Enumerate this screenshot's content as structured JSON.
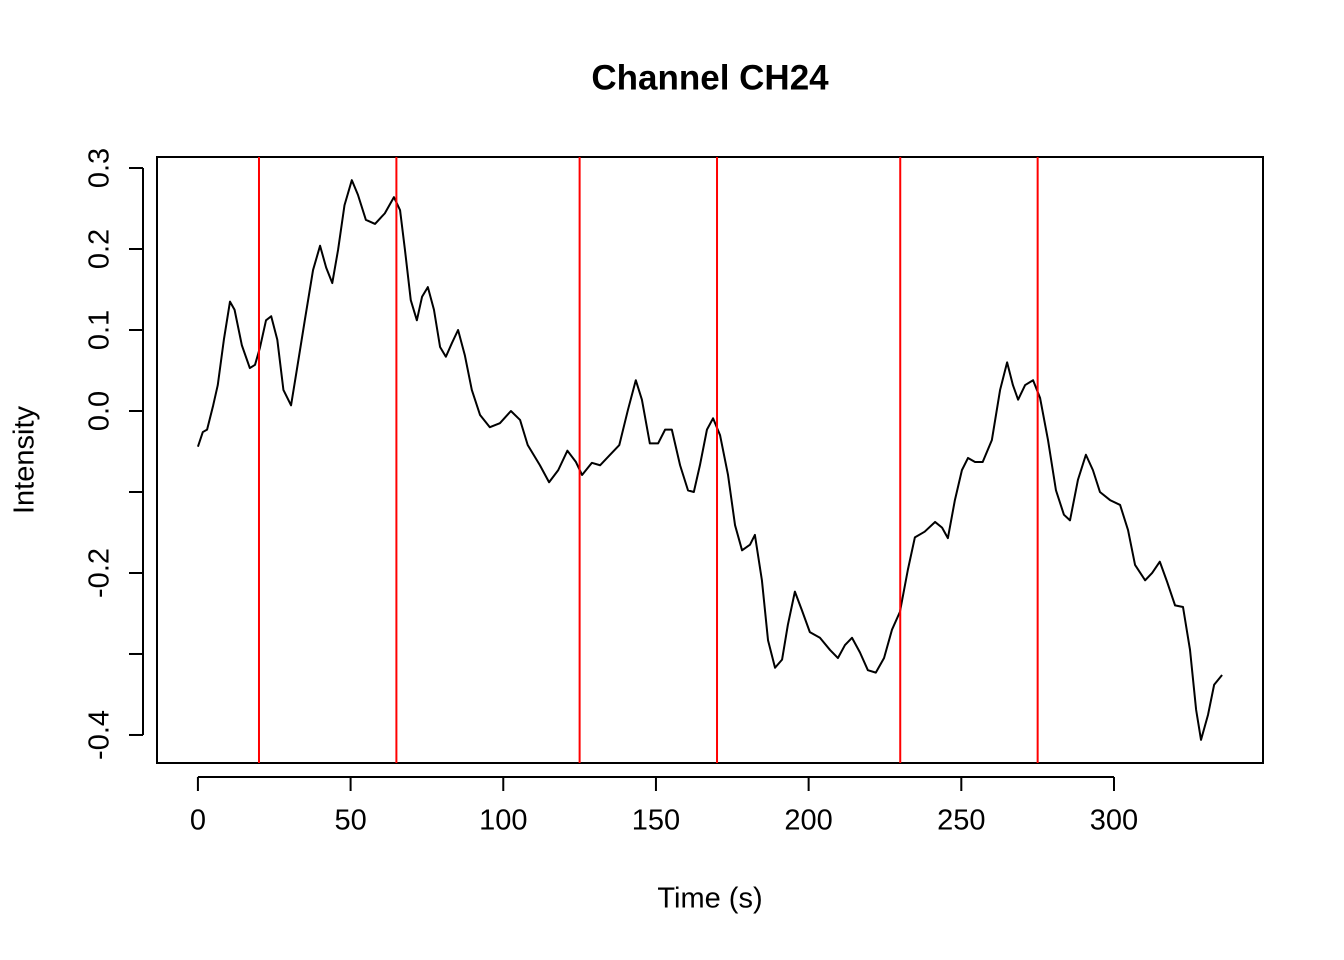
{
  "chart_data": {
    "type": "line",
    "title": "Channel CH24",
    "xlabel": "Time (s)",
    "ylabel": "Intensity",
    "color": "#000000",
    "x": [
      0,
      1.6,
      3,
      5,
      6.5,
      8.5,
      10.5,
      12,
      14.4,
      17,
      18.7,
      20.3,
      22.3,
      24,
      26,
      28,
      30.5,
      32.4,
      35,
      37.7,
      40,
      42,
      44,
      45.9,
      48,
      50.4,
      52.4,
      55,
      58,
      61.2,
      64.2,
      66.2,
      67.8,
      69.7,
      71.7,
      73.4,
      75.3,
      77.3,
      79.3,
      81.2,
      83.2,
      85.2,
      87.4,
      89.7,
      92.4,
      95.6,
      98.9,
      102.5,
      105.5,
      108,
      112,
      115,
      118,
      121,
      123.8,
      125.8,
      129,
      131.7,
      135,
      138,
      140.8,
      143.4,
      145.4,
      148,
      150.7,
      153,
      155.2,
      157.9,
      160.5,
      162.4,
      164.4,
      166.7,
      168.7,
      171,
      173.6,
      175.9,
      178.2,
      180.8,
      182.4,
      184.7,
      186.7,
      189,
      191.3,
      193.2,
      195.5,
      197.8,
      200.4,
      203.7,
      207,
      209.6,
      211.9,
      214.2,
      216.8,
      219.4,
      222,
      224.7,
      227.3,
      229.9,
      232.5,
      234.8,
      238,
      241.4,
      243.7,
      245.6,
      247.9,
      250.2,
      252.2,
      254.5,
      257,
      260,
      262.7,
      265,
      266.9,
      268.6,
      270.9,
      273.5,
      275.8,
      278.4,
      281,
      283.6,
      285.6,
      288.2,
      290.8,
      293.1,
      295.4,
      298.7,
      302,
      304.6,
      306.9,
      310.2,
      312.5,
      315,
      317.4,
      320,
      322.6,
      324.9,
      326.9,
      328.5,
      330.8,
      332.8,
      335.4
    ],
    "values": [
      -0.044,
      -0.026,
      -0.023,
      0.007,
      0.032,
      0.088,
      0.135,
      0.125,
      0.081,
      0.053,
      0.057,
      0.078,
      0.112,
      0.117,
      0.088,
      0.026,
      0.007,
      0.051,
      0.112,
      0.174,
      0.204,
      0.177,
      0.158,
      0.199,
      0.254,
      0.285,
      0.267,
      0.236,
      0.231,
      0.244,
      0.264,
      0.248,
      0.199,
      0.137,
      0.112,
      0.141,
      0.153,
      0.125,
      0.079,
      0.067,
      0.084,
      0.1,
      0.069,
      0.026,
      -0.005,
      -0.02,
      -0.015,
      0.0,
      -0.011,
      -0.042,
      -0.067,
      -0.088,
      -0.073,
      -0.049,
      -0.063,
      -0.079,
      -0.064,
      -0.067,
      -0.054,
      -0.042,
      0.001,
      0.038,
      0.014,
      -0.04,
      -0.04,
      -0.023,
      -0.023,
      -0.067,
      -0.098,
      -0.1,
      -0.067,
      -0.023,
      -0.009,
      -0.03,
      -0.079,
      -0.141,
      -0.172,
      -0.165,
      -0.153,
      -0.209,
      -0.283,
      -0.317,
      -0.307,
      -0.264,
      -0.223,
      -0.246,
      -0.273,
      -0.28,
      -0.295,
      -0.305,
      -0.289,
      -0.28,
      -0.298,
      -0.32,
      -0.323,
      -0.305,
      -0.27,
      -0.248,
      -0.196,
      -0.156,
      -0.149,
      -0.137,
      -0.144,
      -0.157,
      -0.11,
      -0.073,
      -0.058,
      -0.063,
      -0.063,
      -0.036,
      0.026,
      0.06,
      0.032,
      0.014,
      0.032,
      0.038,
      0.016,
      -0.036,
      -0.098,
      -0.128,
      -0.135,
      -0.085,
      -0.054,
      -0.073,
      -0.1,
      -0.11,
      -0.116,
      -0.147,
      -0.19,
      -0.209,
      -0.2,
      -0.186,
      -0.211,
      -0.24,
      -0.242,
      -0.295,
      -0.369,
      -0.406,
      -0.375,
      -0.338,
      -0.326
    ],
    "vlines": [
      20,
      65,
      125,
      170,
      230,
      275
    ],
    "vline_color": "#ff0000",
    "xlim": [
      -13.4,
      348.8
    ],
    "ylim": [
      -0.4346,
      0.3136
    ],
    "xticks": [
      0,
      50,
      100,
      150,
      200,
      250,
      300
    ],
    "yticks": [
      {
        "value": -0.4,
        "label": "-0.4"
      },
      {
        "value": -0.3,
        "label": null
      },
      {
        "value": -0.2,
        "label": "-0.2"
      },
      {
        "value": -0.1,
        "label": null
      },
      {
        "value": 0,
        "label": "0.0"
      },
      0.1,
      0.2,
      0.3
    ]
  }
}
